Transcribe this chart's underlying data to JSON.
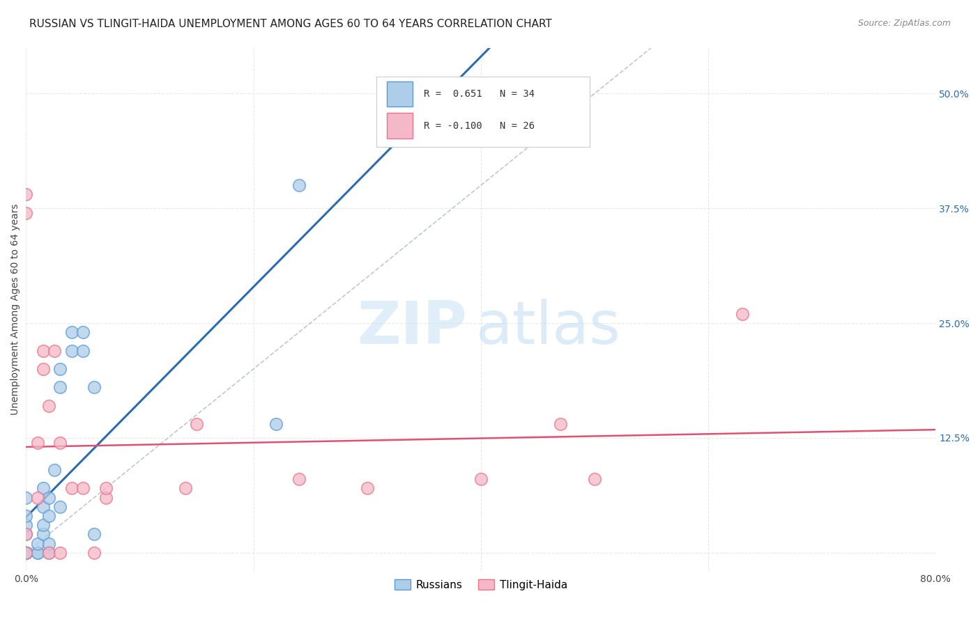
{
  "title": "RUSSIAN VS TLINGIT-HAIDA UNEMPLOYMENT AMONG AGES 60 TO 64 YEARS CORRELATION CHART",
  "source": "Source: ZipAtlas.com",
  "ylabel": "Unemployment Among Ages 60 to 64 years",
  "xlim": [
    0.0,
    0.8
  ],
  "ylim": [
    -0.02,
    0.55
  ],
  "yplot_min": 0.0,
  "yplot_max": 0.55,
  "xticks": [
    0.0,
    0.2,
    0.4,
    0.6,
    0.8
  ],
  "xticklabels": [
    "0.0%",
    "",
    "",
    "",
    "80.0%"
  ],
  "yticks_right": [
    0.125,
    0.25,
    0.375,
    0.5
  ],
  "yticklabels_right": [
    "12.5%",
    "25.0%",
    "37.5%",
    "50.0%"
  ],
  "blue_color": "#aecde8",
  "blue_edge_color": "#5b9bd5",
  "pink_color": "#f4b8c8",
  "pink_edge_color": "#e8748a",
  "blue_line_color": "#2b6cb0",
  "pink_line_color": "#e05070",
  "diagonal_color": "#b0b8d0",
  "russians_x": [
    0.0,
    0.0,
    0.0,
    0.0,
    0.0,
    0.0,
    0.0,
    0.0,
    0.0,
    0.0,
    0.0,
    0.01,
    0.01,
    0.01,
    0.015,
    0.015,
    0.015,
    0.015,
    0.02,
    0.02,
    0.02,
    0.02,
    0.025,
    0.03,
    0.03,
    0.03,
    0.04,
    0.04,
    0.05,
    0.05,
    0.06,
    0.06,
    0.22,
    0.24
  ],
  "russians_y": [
    0.0,
    0.0,
    0.0,
    0.0,
    0.0,
    0.0,
    0.0,
    0.02,
    0.03,
    0.04,
    0.06,
    0.0,
    0.0,
    0.01,
    0.02,
    0.03,
    0.05,
    0.07,
    0.0,
    0.01,
    0.04,
    0.06,
    0.09,
    0.05,
    0.18,
    0.2,
    0.22,
    0.24,
    0.22,
    0.24,
    0.02,
    0.18,
    0.14,
    0.4
  ],
  "tlingit_x": [
    0.0,
    0.0,
    0.0,
    0.0,
    0.01,
    0.01,
    0.015,
    0.015,
    0.02,
    0.02,
    0.025,
    0.03,
    0.03,
    0.04,
    0.05,
    0.06,
    0.07,
    0.07,
    0.14,
    0.15,
    0.24,
    0.3,
    0.4,
    0.47,
    0.5,
    0.63
  ],
  "tlingit_y": [
    0.0,
    0.02,
    0.37,
    0.39,
    0.06,
    0.12,
    0.2,
    0.22,
    0.0,
    0.16,
    0.22,
    0.0,
    0.12,
    0.07,
    0.07,
    0.0,
    0.06,
    0.07,
    0.07,
    0.14,
    0.08,
    0.07,
    0.08,
    0.14,
    0.08,
    0.26
  ],
  "background_color": "#ffffff",
  "grid_color": "#e8e8e8",
  "title_fontsize": 11,
  "axis_fontsize": 10,
  "tick_fontsize": 10,
  "marker_size": 160,
  "marker_alpha": 0.75
}
